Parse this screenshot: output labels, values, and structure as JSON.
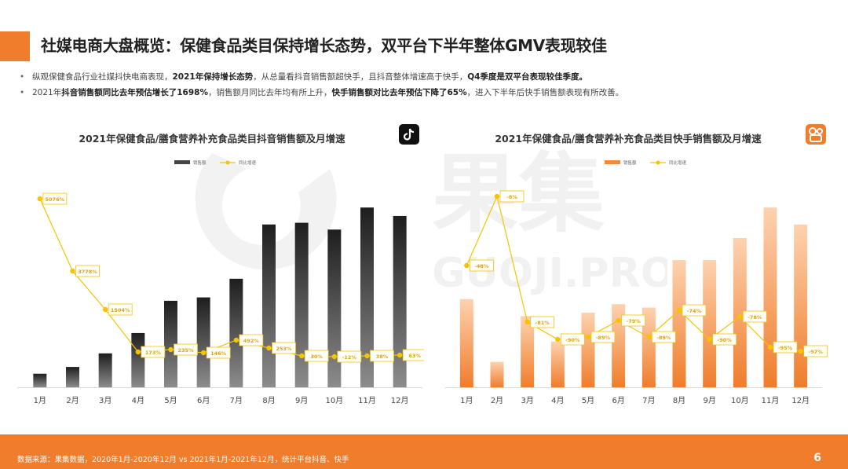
{
  "page": {
    "title": "社媒电商大盘概览：保健食品类目保持增长态势，双平台下半年整体GMV表现较佳",
    "bullets": [
      {
        "parts": [
          {
            "text": "纵观保健食品行业社媒抖快电商表现，",
            "bold": false
          },
          {
            "text": "2021年保持增长态势",
            "bold": true
          },
          {
            "text": "，从总量看抖音销售额超快手，且抖音整体增速高于快手，",
            "bold": false
          },
          {
            "text": "Q4季度是双平台表现较佳季度。",
            "bold": true
          }
        ]
      },
      {
        "parts": [
          {
            "text": "2021年",
            "bold": false
          },
          {
            "text": "抖音销售额同比去年预估增长了1698%",
            "bold": true
          },
          {
            "text": "，销售额月同比去年均有所上升，",
            "bold": false
          },
          {
            "text": "快手销售额对比去年预估下降了65%",
            "bold": true
          },
          {
            "text": "，进入下半年后快手销售额表现有所改善。",
            "bold": false
          }
        ]
      }
    ],
    "source": "数据来源：果集数据，2020年1月-2020年12月 vs 2021年1月-2021年12月，统计平台抖音、快手",
    "page_number": "6",
    "watermark": {
      "cn": "果集",
      "en": "GUOJI.PRO"
    },
    "colors": {
      "accent": "#ef7d2c",
      "douyin_bar": "#3a3a3a",
      "kuaishou_bar": "#f08a3c",
      "growth_line": "#f5c400"
    }
  },
  "chart_data": [
    {
      "type": "bar",
      "title": "2021年保健食品/膳食营养补充食品类目抖音销售额及月增速",
      "icon": "douyin-icon",
      "categories": [
        "1月",
        "2月",
        "3月",
        "4月",
        "5月",
        "6月",
        "7月",
        "8月",
        "9月",
        "10月",
        "11月",
        "12月"
      ],
      "series": [
        {
          "name": "销售额",
          "type": "bar",
          "values": [
            8,
            12,
            20,
            32,
            51,
            53,
            64,
            96,
            97,
            93,
            106,
            101
          ]
        },
        {
          "name": "同比增速",
          "type": "line",
          "values": [
            5076,
            3778,
            1504,
            173,
            235,
            146,
            492,
            253,
            30,
            -12,
            38,
            63
          ],
          "labels": [
            "5076%",
            "3778%",
            "1504%",
            "173%",
            "235%",
            "146%",
            "492%",
            "253%",
            "30%",
            "-12%",
            "38%",
            "63%"
          ]
        }
      ],
      "legend": "top-left",
      "grid": false
    },
    {
      "type": "bar",
      "title": "2021年保健食品/膳食营养补充食品类目快手销售额及月增速",
      "icon": "kuaishou-icon",
      "categories": [
        "1月",
        "2月",
        "3月",
        "4月",
        "5月",
        "6月",
        "7月",
        "8月",
        "9月",
        "10月",
        "11月",
        "12月"
      ],
      "series": [
        {
          "name": "销售额",
          "type": "bar",
          "values": [
            52,
            15,
            42,
            27,
            44,
            49,
            47,
            75,
            75,
            88,
            106,
            96
          ]
        },
        {
          "name": "同比增速",
          "type": "line",
          "values": [
            -48,
            -8,
            -81,
            -90,
            -89,
            -79,
            -89,
            -74,
            -90,
            -78,
            -95,
            -97
          ],
          "labels": [
            "-48%",
            "-8%",
            "-81%",
            "-90%",
            "-89%",
            "-79%",
            "-89%",
            "-74%",
            "-90%",
            "-78%",
            "-95%",
            "-97%"
          ]
        }
      ],
      "legend": "top-left",
      "grid": false
    }
  ]
}
